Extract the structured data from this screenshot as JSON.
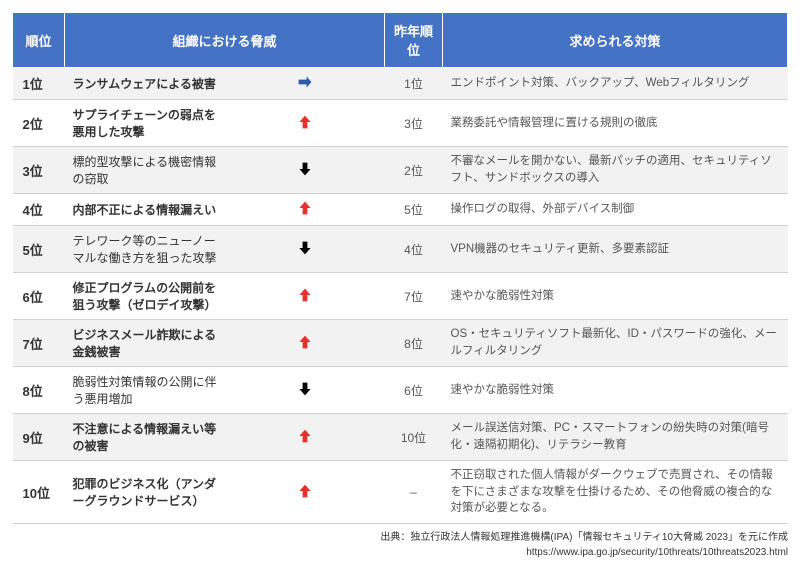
{
  "headers": {
    "rank": "順位",
    "threat": "組織における脅威",
    "prev": "昨年順位",
    "counter": "求められる対策"
  },
  "colors": {
    "header_bg": "#4472c4",
    "header_fg": "#ffffff",
    "row_alt_bg": "#f2f2f2",
    "arrow_up": "#e6322e",
    "arrow_down": "#000000",
    "arrow_same": "#2f5aa8",
    "border": "#d0d0d0"
  },
  "rows": [
    {
      "rank": "1位",
      "threat": "ランサムウェアによる被害",
      "bold": true,
      "trend": "same",
      "prev": "1位",
      "counter": "エンドポイント対策、バックアップ、Webフィルタリング"
    },
    {
      "rank": "2位",
      "threat": "サプライチェーンの弱点を悪用した攻撃",
      "bold": true,
      "trend": "up",
      "prev": "3位",
      "counter": "業務委託や情報管理に置ける規則の徹底"
    },
    {
      "rank": "3位",
      "threat": "標的型攻撃による機密情報の窃取",
      "bold": false,
      "trend": "down",
      "prev": "2位",
      "counter": "不審なメールを開かない、最新パッチの適用、セキュリティソフト、サンドボックスの導入"
    },
    {
      "rank": "4位",
      "threat": "内部不正による情報漏えい",
      "bold": true,
      "trend": "up",
      "prev": "5位",
      "counter": "操作ログの取得、外部デバイス制御"
    },
    {
      "rank": "5位",
      "threat": "テレワーク等のニューノーマルな働き方を狙った攻撃",
      "bold": false,
      "trend": "down",
      "prev": "4位",
      "counter": "VPN機器のセキュリティ更新、多要素認証"
    },
    {
      "rank": "6位",
      "threat": "修正プログラムの公開前を狙う攻撃（ゼロデイ攻撃）",
      "bold": true,
      "trend": "up",
      "prev": "7位",
      "counter": "速やかな脆弱性対策"
    },
    {
      "rank": "7位",
      "threat": "ビジネスメール詐欺による金銭被害",
      "bold": true,
      "trend": "up",
      "prev": "8位",
      "counter": "OS・セキュリティソフト最新化、ID・パスワードの強化、メールフィルタリング"
    },
    {
      "rank": "8位",
      "threat": "脆弱性対策情報の公開に伴う悪用増加",
      "bold": false,
      "trend": "down",
      "prev": "6位",
      "counter": "速やかな脆弱性対策"
    },
    {
      "rank": "9位",
      "threat": "不注意による情報漏えい等の被害",
      "bold": true,
      "trend": "up",
      "prev": "10位",
      "counter": "メール誤送信対策、PC・スマートフォンの紛失時の対策(暗号化・遠隔初期化)、リテラシー教育"
    },
    {
      "rank": "10位",
      "threat": "犯罪のビジネス化（アンダーグラウンドサービス）",
      "bold": true,
      "trend": "up",
      "prev": "–",
      "counter": "不正窃取された個人情報がダークウェブで売買され、その情報を下にさまざまな攻撃を仕掛けるため、その他脅威の複合的な対策が必要となる。"
    }
  ],
  "citation": {
    "line1": "出典：独立行政法人情報処理推進機構(IPA)「情報セキュリティ10大脅威 2023」を元に作成",
    "line2": "https://www.ipa.go.jp/security/10threats/10threats2023.html"
  }
}
